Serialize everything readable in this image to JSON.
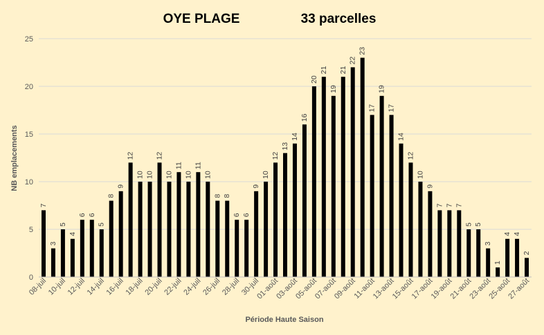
{
  "chart_data": {
    "type": "bar",
    "title": "OYE PLAGE",
    "subtitle": "33 parcelles",
    "xlabel": "Période Haute Saison",
    "ylabel": "NB emplacements",
    "ylim": [
      0,
      25
    ],
    "yticks": [
      0,
      5,
      10,
      15,
      20,
      25
    ],
    "grid": true,
    "legend": "none",
    "colors": {
      "bar": "#000000",
      "background": "#FFF2CC",
      "grid": "#D9D9D9"
    },
    "categories": [
      "08-juil",
      "09-juil",
      "10-juil",
      "11-juil",
      "12-juil",
      "13-juil",
      "14-juil",
      "15-juil",
      "16-juil",
      "17-juil",
      "18-juil",
      "19-juil",
      "20-juil",
      "21-juil",
      "22-juil",
      "23-juil",
      "24-juil",
      "25-juil",
      "26-juil",
      "27-juil",
      "28-juil",
      "29-juil",
      "30-juil",
      "31-juil",
      "01-août",
      "02-août",
      "03-août",
      "04-août",
      "05-août",
      "06-août",
      "07-août",
      "08-août",
      "09-août",
      "10-août",
      "11-août",
      "12-août",
      "13-août",
      "14-août",
      "15-août",
      "16-août",
      "17-août",
      "18-août",
      "19-août",
      "20-août",
      "21-août",
      "22-août",
      "23-août",
      "24-août",
      "25-août",
      "26-août",
      "27-août"
    ],
    "xticklabels": [
      "08-juil",
      "10-juil",
      "12-juil",
      "14-juil",
      "16-juil",
      "18-juil",
      "20-juil",
      "22-juil",
      "24-juil",
      "26-juil",
      "28-juil",
      "30-juil",
      "01-août",
      "03-août",
      "05-août",
      "07-août",
      "09-août",
      "11-août",
      "13-août",
      "15-août",
      "17-août",
      "19-août",
      "21-août",
      "23-août",
      "25-août",
      "27-août"
    ],
    "values": [
      7,
      3,
      5,
      4,
      6,
      6,
      5,
      8,
      9,
      12,
      10,
      10,
      12,
      10,
      11,
      10,
      11,
      10,
      8,
      8,
      6,
      6,
      9,
      10,
      12,
      13,
      14,
      16,
      20,
      21,
      19,
      21,
      22,
      23,
      17,
      19,
      17,
      14,
      12,
      10,
      9,
      7,
      7,
      7,
      5,
      5,
      3,
      1,
      4,
      4,
      2
    ]
  }
}
